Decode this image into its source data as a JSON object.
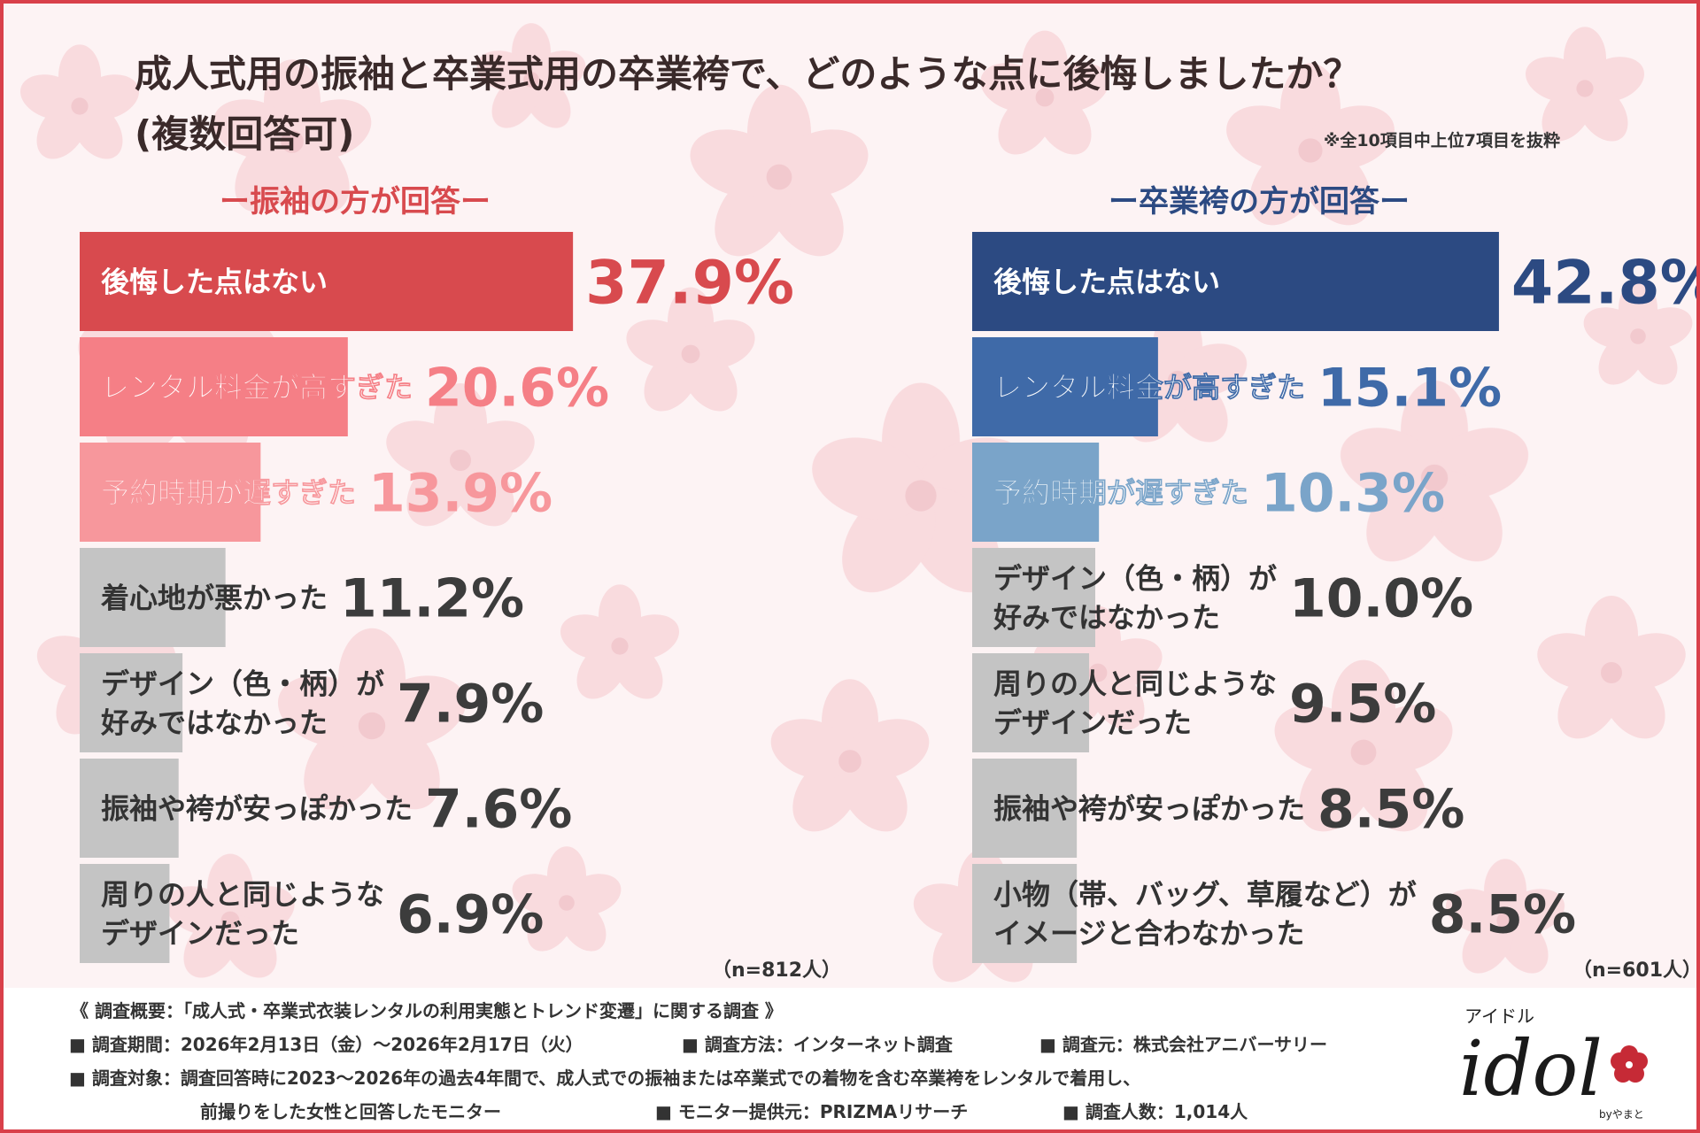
{
  "title_line1": "成人式用の振袖と卒業式用の卒業袴で、どのような点に後悔しましたか？",
  "title_line2": "(複数回答可)",
  "note": "※全10項目中上位7項目を抜粋",
  "left_panel": {
    "heading": "ー振袖の方が回答ー",
    "n": "（n=812人）"
  },
  "right_panel": {
    "heading": "ー卒業袴の方が回答ー",
    "n": "（n=601人）"
  },
  "colors": {
    "left": [
      "#d84a4e",
      "#f57f86",
      "#f7979c",
      "#c4c4c4",
      "#c4c4c4",
      "#c4c4c4",
      "#c4c4c4"
    ],
    "right": [
      "#2c4a82",
      "#3f6aa8",
      "#7aa4c9",
      "#c4c4c4",
      "#c4c4c4",
      "#c4c4c4",
      "#c4c4c4"
    ],
    "left_pct": [
      "#d84a4e",
      "#f57f86",
      "#f7979c",
      "#3c3c3c",
      "#3c3c3c",
      "#3c3c3c",
      "#3c3c3c"
    ],
    "right_pct": [
      "#2c4a82",
      "#3f6aa8",
      "#7aa4c9",
      "#3c3c3c",
      "#3c3c3c",
      "#3c3c3c",
      "#3c3c3c"
    ]
  },
  "chart_data": [
    {
      "type": "bar",
      "orientation": "horizontal",
      "title": "ー振袖の方が回答ー",
      "categories": [
        "後悔した点はない",
        "レンタル料金が高すぎた",
        "予約時期が遅すぎた",
        "着心地が悪かった",
        "デザイン（色・柄）が\n好みではなかった",
        "振袖や袴が安っぽかった",
        "周りの人と同じような\nデザインだった"
      ],
      "values": [
        37.9,
        20.6,
        13.9,
        11.2,
        7.9,
        7.6,
        6.9
      ],
      "value_labels": [
        "37.9%",
        "20.6%",
        "13.9%",
        "11.2%",
        "7.9%",
        "7.6%",
        "6.9%"
      ]
    },
    {
      "type": "bar",
      "orientation": "horizontal",
      "title": "ー卒業袴の方が回答ー",
      "categories": [
        "後悔した点はない",
        "レンタル料金が高すぎた",
        "予約時期が遅すぎた",
        "デザイン（色・柄）が\n好みではなかった",
        "周りの人と同じような\nデザインだった",
        "振袖や袴が安っぽかった",
        "小物（帯、バッグ、草履など）が\nイメージと合わなかった"
      ],
      "values": [
        42.8,
        15.1,
        10.3,
        10.0,
        9.5,
        8.5,
        8.5
      ],
      "value_labels": [
        "42.8%",
        "15.1%",
        "10.3%",
        "10.0%",
        "9.5%",
        "8.5%",
        "8.5%"
      ]
    }
  ],
  "footer": {
    "summary": "《 調査概要：「成人式・卒業式衣装レンタルの利用実態とトレンド変遷」に関する調査 》",
    "period": "■ 調査期間：2026年2月13日（金）〜2026年2月17日（火）",
    "method": "■ 調査方法：インターネット調査",
    "source": "■ 調査元：株式会社アニバーサリー",
    "target1": "■ 調査対象：調査回答時に2023〜2026年の過去4年間で、成人式での振袖または卒業式での着物を含む卒業袴をレンタルで着用し、",
    "target2": "前撮りをした女性と回答したモニター",
    "provider": "■ モニター提供元：PRIZMAリサーチ",
    "count": "■ 調査人数：1,014人"
  },
  "logo": {
    "kana": "アイドル",
    "word": "idol",
    "by": "byやまと"
  }
}
